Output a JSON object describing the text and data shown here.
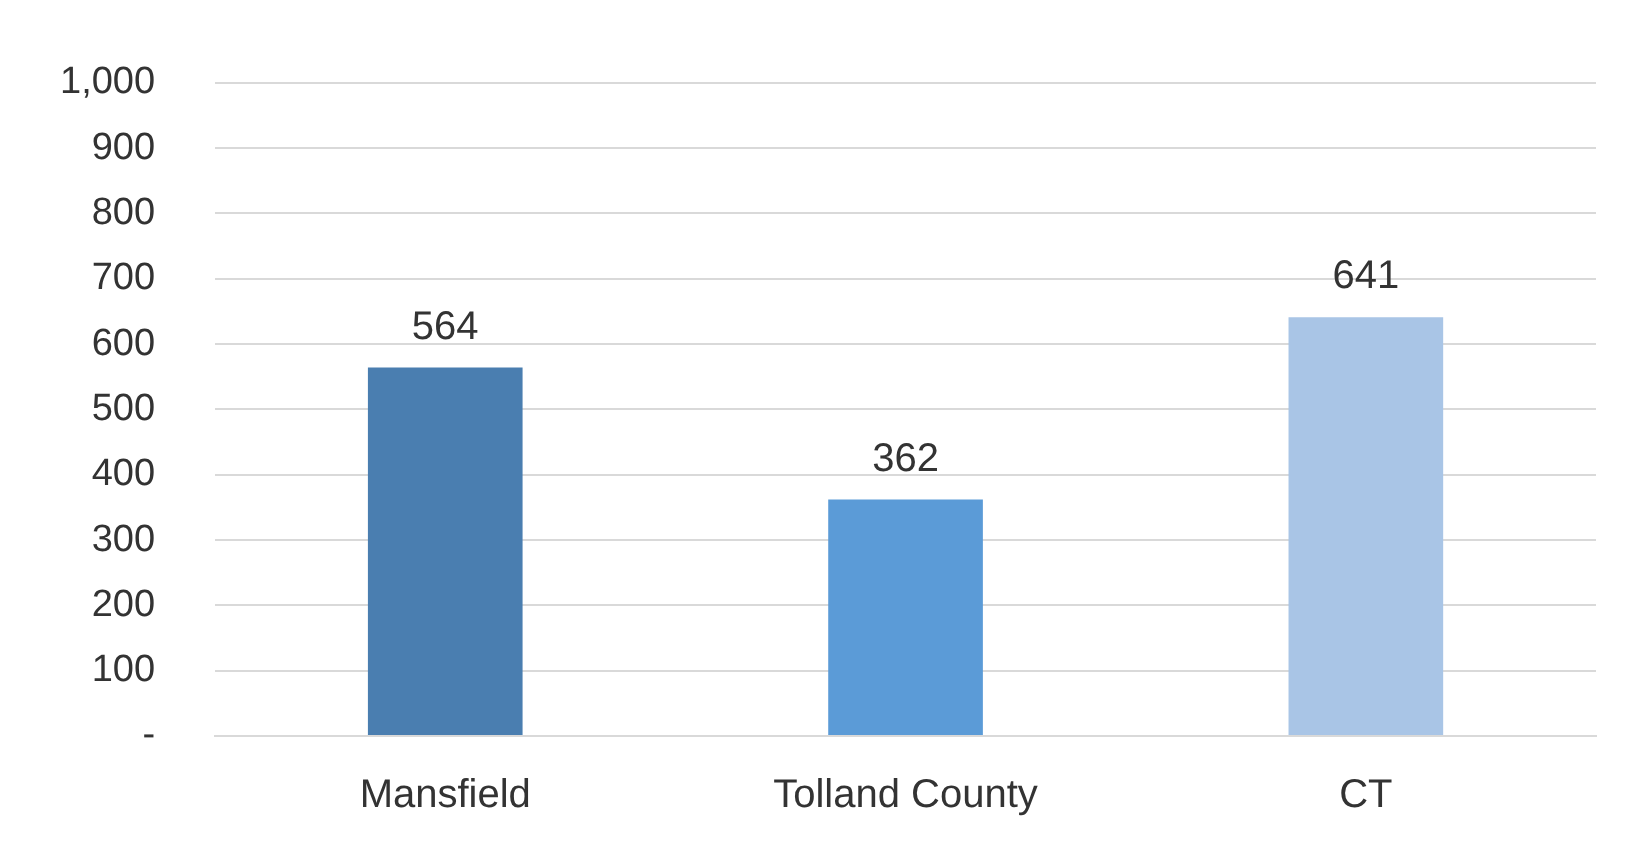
{
  "chart_data": {
    "type": "bar",
    "categories": [
      "Mansfield",
      "Tolland County",
      "CT"
    ],
    "values": [
      564,
      362,
      641
    ],
    "colors": [
      "#4a7eb0",
      "#5b9bd7",
      "#a9c5e6"
    ],
    "ylim": [
      0,
      1000
    ],
    "yticks": [
      {
        "value": 0,
        "label": "-"
      },
      100,
      200,
      300,
      400,
      500,
      600,
      700,
      800,
      900,
      {
        "value": 1000,
        "label": "1,000"
      }
    ],
    "grid": "y",
    "data_labels": true
  }
}
